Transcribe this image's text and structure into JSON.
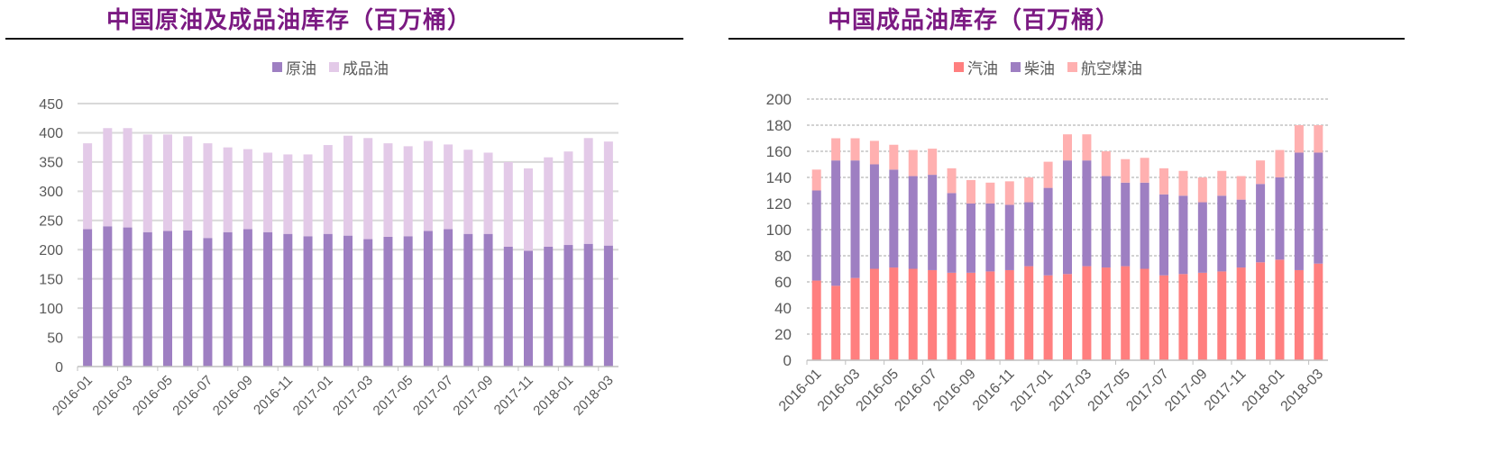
{
  "left": {
    "title": "中国原油及成品油库存（百万桶）",
    "legend": [
      {
        "label": "原油",
        "color": "#9e7fc2"
      },
      {
        "label": "成品油",
        "color": "#e3cae8"
      }
    ]
  },
  "right": {
    "title": "中国成品油库存（百万桶）",
    "legend": [
      {
        "label": "汽油",
        "color": "#ff7f7f"
      },
      {
        "label": "柴油",
        "color": "#9e7fc2"
      },
      {
        "label": "航空煤油",
        "color": "#ffb0b0"
      }
    ]
  },
  "chart_data": [
    {
      "type": "bar",
      "stacked": true,
      "title": "中国原油及成品油库存（百万桶）",
      "xlabel": "",
      "ylabel": "",
      "ylim": [
        0,
        450
      ],
      "yticks": [
        0,
        50,
        100,
        150,
        200,
        250,
        300,
        350,
        400,
        450
      ],
      "grid": true,
      "legend_position": "top",
      "categories": [
        "2016-01",
        "2016-02",
        "2016-03",
        "2016-04",
        "2016-05",
        "2016-06",
        "2016-07",
        "2016-08",
        "2016-09",
        "2016-10",
        "2016-11",
        "2016-12",
        "2017-01",
        "2017-02",
        "2017-03",
        "2017-04",
        "2017-05",
        "2017-06",
        "2017-07",
        "2017-08",
        "2017-09",
        "2017-10",
        "2017-11",
        "2017-12",
        "2018-01",
        "2018-02",
        "2018-03"
      ],
      "xtick_labels": [
        "2016-01",
        "2016-03",
        "2016-05",
        "2016-07",
        "2016-09",
        "2016-11",
        "2017-01",
        "2017-03",
        "2017-05",
        "2017-07",
        "2017-09",
        "2017-11",
        "2018-01",
        "2018-03"
      ],
      "series": [
        {
          "name": "原油",
          "color": "#9e7fc2",
          "values": [
            235,
            240,
            238,
            230,
            232,
            233,
            220,
            230,
            235,
            230,
            227,
            223,
            227,
            224,
            218,
            222,
            223,
            232,
            235,
            227,
            227,
            205,
            198,
            205,
            208,
            210,
            207
          ]
        },
        {
          "name": "成品油",
          "color": "#e3cae8",
          "values": [
            147,
            168,
            170,
            167,
            165,
            161,
            162,
            145,
            137,
            136,
            136,
            140,
            152,
            171,
            173,
            160,
            154,
            154,
            145,
            144,
            139,
            145,
            141,
            153,
            160,
            181,
            178
          ]
        }
      ]
    },
    {
      "type": "bar",
      "stacked": true,
      "title": "中国成品油库存（百万桶）",
      "xlabel": "",
      "ylabel": "",
      "ylim": [
        0,
        200
      ],
      "yticks": [
        0,
        20,
        40,
        60,
        80,
        100,
        120,
        140,
        160,
        180,
        200
      ],
      "grid": true,
      "legend_position": "top",
      "categories": [
        "2016-01",
        "2016-02",
        "2016-03",
        "2016-04",
        "2016-05",
        "2016-06",
        "2016-07",
        "2016-08",
        "2016-09",
        "2016-10",
        "2016-11",
        "2016-12",
        "2017-01",
        "2017-02",
        "2017-03",
        "2017-04",
        "2017-05",
        "2017-06",
        "2017-07",
        "2017-08",
        "2017-09",
        "2017-10",
        "2017-11",
        "2017-12",
        "2018-01",
        "2018-02",
        "2018-03"
      ],
      "xtick_labels": [
        "2016-01",
        "2016-03",
        "2016-05",
        "2016-07",
        "2016-09",
        "2016-11",
        "2017-01",
        "2017-03",
        "2017-05",
        "2017-07",
        "2017-09",
        "2017-11",
        "2018-01",
        "2018-03"
      ],
      "series": [
        {
          "name": "汽油",
          "color": "#ff7f7f",
          "values": [
            61,
            57,
            63,
            70,
            71,
            70,
            69,
            67,
            67,
            68,
            69,
            72,
            65,
            66,
            72,
            71,
            72,
            70,
            65,
            66,
            67,
            68,
            71,
            75,
            77,
            69,
            74
          ]
        },
        {
          "name": "柴油",
          "color": "#9e7fc2",
          "values": [
            69,
            96,
            90,
            80,
            75,
            71,
            73,
            61,
            53,
            52,
            50,
            49,
            67,
            87,
            81,
            70,
            64,
            66,
            62,
            60,
            54,
            58,
            52,
            60,
            63,
            90,
            85
          ]
        },
        {
          "name": "航空煤油",
          "color": "#ffb0b0",
          "values": [
            16,
            17,
            17,
            18,
            19,
            20,
            20,
            19,
            18,
            16,
            18,
            19,
            20,
            20,
            20,
            19,
            18,
            19,
            20,
            19,
            19,
            19,
            18,
            18,
            21,
            21,
            21
          ]
        }
      ]
    }
  ]
}
